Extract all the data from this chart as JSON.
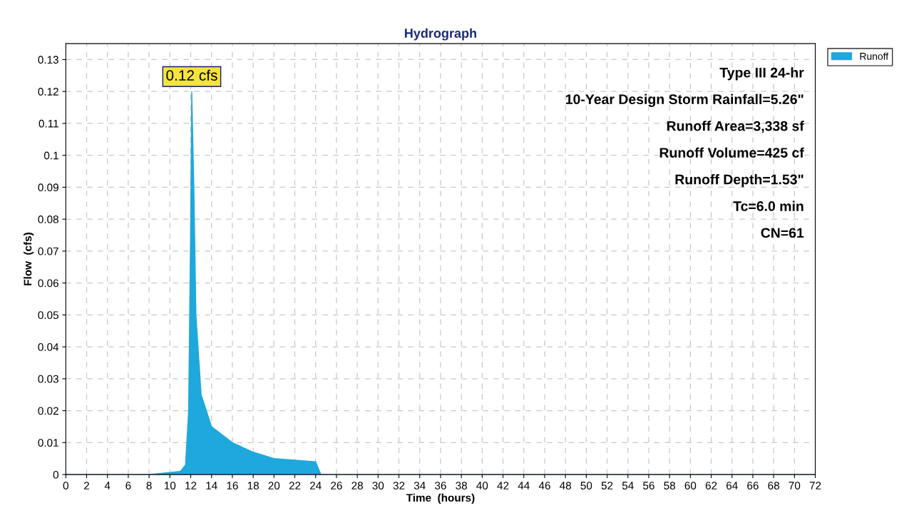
{
  "chart_data": {
    "type": "area",
    "title": "Hydrograph",
    "xlabel": "Time  (hours)",
    "ylabel": "Flow  (cfs)",
    "x": [
      0,
      8,
      11,
      11.5,
      11.8,
      12.0,
      12.1,
      12.3,
      12.5,
      13,
      14,
      16,
      18,
      20,
      22,
      24,
      24.5,
      72
    ],
    "series": [
      {
        "name": "Runoff",
        "color": "#1ea8dc",
        "values": [
          0,
          0,
          0.001,
          0.003,
          0.02,
          0.08,
          0.12,
          0.09,
          0.05,
          0.025,
          0.015,
          0.01,
          0.007,
          0.005,
          0.0045,
          0.004,
          0,
          0
        ]
      }
    ],
    "xlim": [
      0,
      72
    ],
    "xticks": [
      0,
      2,
      4,
      6,
      8,
      10,
      12,
      14,
      16,
      18,
      20,
      22,
      24,
      26,
      28,
      30,
      32,
      34,
      36,
      38,
      40,
      42,
      44,
      46,
      48,
      50,
      52,
      54,
      56,
      58,
      60,
      62,
      64,
      66,
      68,
      70,
      72
    ],
    "ylim": [
      0,
      0.135
    ],
    "yticks": [
      0,
      0.01,
      0.02,
      0.03,
      0.04,
      0.05,
      0.06,
      0.07,
      0.08,
      0.09,
      0.1,
      0.11,
      0.12,
      0.13
    ],
    "grid": true,
    "legend": "top right",
    "annotations": [
      {
        "text": "0.12 cfs",
        "x": 12.1,
        "y": 0.12
      },
      "Type III 24-hr",
      "10-Year Design Storm Rainfall=5.26\"",
      "Runoff Area=3,338 sf",
      "Runoff Volume=425 cf",
      "Runoff Depth=1.53\"",
      "Tc=6.0 min",
      "CN=61"
    ]
  }
}
